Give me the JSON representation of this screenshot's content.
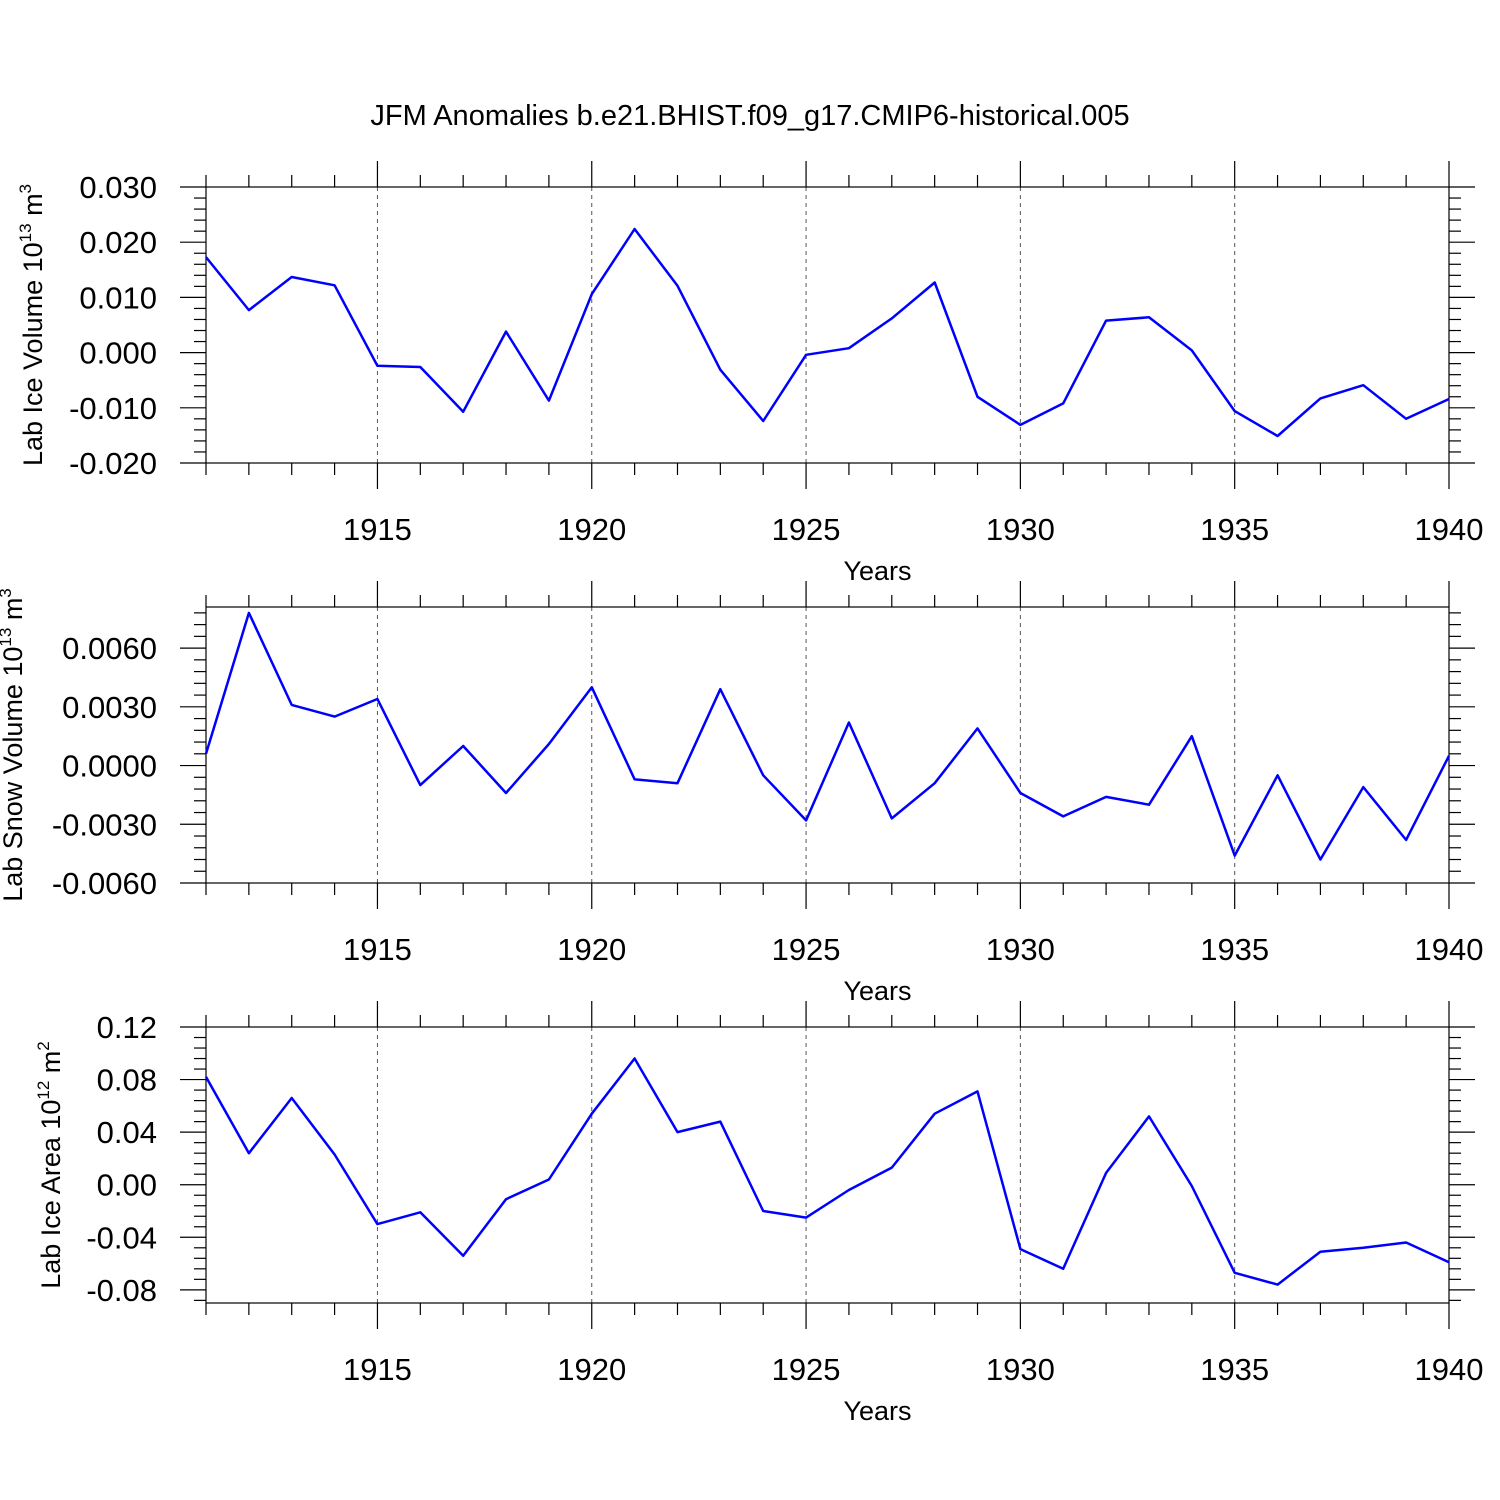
{
  "figure": {
    "title": "JFM Anomalies b.e21.BHIST.f09_g17.CMIP6-historical.005"
  },
  "colors": {
    "line": "#0000ff",
    "axis": "#000000",
    "grid": "#555555"
  },
  "chart_data": [
    {
      "type": "line",
      "ylabel_main": "Lab Ice Volume 10",
      "ylabel_exp": "13",
      "ylabel_unit": " m",
      "ylabel_unit_exp": "3",
      "xlabel": "Years",
      "xlim": [
        1911,
        1940
      ],
      "ylim": [
        -0.02,
        0.03
      ],
      "yticks": [
        -0.02,
        -0.01,
        0.0,
        0.01,
        0.02,
        0.03
      ],
      "ytick_labels": [
        "-0.020",
        "-0.010",
        "0.000",
        "0.010",
        "0.020",
        "0.030"
      ],
      "xticks": [
        1915,
        1920,
        1925,
        1930,
        1935,
        1940
      ],
      "xtick_labels": [
        "1915",
        "1920",
        "1925",
        "1930",
        "1935",
        "1940"
      ],
      "grid": "vertical dashed at labeled years",
      "x": [
        1911,
        1912,
        1913,
        1914,
        1915,
        1916,
        1917,
        1918,
        1919,
        1920,
        1921,
        1922,
        1923,
        1924,
        1925,
        1926,
        1927,
        1928,
        1929,
        1930,
        1931,
        1932,
        1933,
        1934,
        1935,
        1936,
        1937,
        1938,
        1939,
        1940
      ],
      "series": [
        {
          "values": [
            0.0173,
            0.0077,
            0.0137,
            0.0122,
            -0.0024,
            -0.0026,
            -0.0107,
            0.0038,
            -0.0087,
            0.0106,
            0.0224,
            0.0121,
            -0.0031,
            -0.0124,
            -0.0004,
            0.0008,
            0.0062,
            0.0127,
            -0.008,
            -0.0131,
            -0.0092,
            0.0058,
            0.0064,
            0.0004,
            -0.0106,
            -0.0151,
            -0.0083,
            -0.0059,
            -0.012,
            -0.0084
          ]
        }
      ]
    },
    {
      "type": "line",
      "ylabel_main": "Lab Snow Volume 10",
      "ylabel_exp": "13",
      "ylabel_unit": " m",
      "ylabel_unit_exp": "3",
      "xlabel": "Years",
      "xlim": [
        1911,
        1940
      ],
      "ylim": [
        -0.006,
        0.0081
      ],
      "yticks": [
        -0.006,
        -0.003,
        0.0,
        0.003,
        0.006
      ],
      "ytick_labels": [
        "-0.0060",
        "-0.0030",
        "0.0000",
        "0.0030",
        "0.0060"
      ],
      "xticks": [
        1915,
        1920,
        1925,
        1930,
        1935,
        1940
      ],
      "xtick_labels": [
        "1915",
        "1920",
        "1925",
        "1930",
        "1935",
        "1940"
      ],
      "grid": "vertical dashed at labeled years",
      "x": [
        1911,
        1912,
        1913,
        1914,
        1915,
        1916,
        1917,
        1918,
        1919,
        1920,
        1921,
        1922,
        1923,
        1924,
        1925,
        1926,
        1927,
        1928,
        1929,
        1930,
        1931,
        1932,
        1933,
        1934,
        1935,
        1936,
        1937,
        1938,
        1939,
        1940
      ],
      "series": [
        {
          "values": [
            0.0006,
            0.0078,
            0.0031,
            0.0025,
            0.0034,
            -0.001,
            0.001,
            -0.0014,
            0.0011,
            0.004,
            -0.0007,
            -0.0009,
            0.0039,
            -0.0005,
            -0.0028,
            0.0022,
            -0.0027,
            -0.0009,
            0.0019,
            -0.0014,
            -0.0026,
            -0.0016,
            -0.002,
            0.0015,
            -0.0046,
            -0.0005,
            -0.0048,
            -0.0011,
            -0.0038,
            0.0005
          ]
        }
      ]
    },
    {
      "type": "line",
      "ylabel_main": "Lab Ice Area 10",
      "ylabel_exp": "12",
      "ylabel_unit": " m",
      "ylabel_unit_exp": "2",
      "xlabel": "Years",
      "xlim": [
        1911,
        1940
      ],
      "ylim": [
        -0.09,
        0.12
      ],
      "yticks": [
        -0.08,
        -0.04,
        0.0,
        0.04,
        0.08,
        0.12
      ],
      "ytick_labels": [
        "-0.08",
        "-0.04",
        "0.00",
        "0.04",
        "0.08",
        "0.12"
      ],
      "xticks": [
        1915,
        1920,
        1925,
        1930,
        1935,
        1940
      ],
      "xtick_labels": [
        "1915",
        "1920",
        "1925",
        "1930",
        "1935",
        "1940"
      ],
      "grid": "vertical dashed at labeled years",
      "x": [
        1911,
        1912,
        1913,
        1914,
        1915,
        1916,
        1917,
        1918,
        1919,
        1920,
        1921,
        1922,
        1923,
        1924,
        1925,
        1926,
        1927,
        1928,
        1929,
        1930,
        1931,
        1932,
        1933,
        1934,
        1935,
        1936,
        1937,
        1938,
        1939,
        1940
      ],
      "series": [
        {
          "values": [
            0.082,
            0.024,
            0.066,
            0.023,
            -0.03,
            -0.021,
            -0.054,
            -0.011,
            0.004,
            0.054,
            0.096,
            0.04,
            0.048,
            -0.02,
            -0.025,
            -0.004,
            0.013,
            0.054,
            0.071,
            -0.049,
            -0.064,
            0.009,
            0.052,
            -0.001,
            -0.067,
            -0.076,
            -0.051,
            -0.048,
            -0.044,
            -0.059
          ]
        }
      ]
    }
  ]
}
